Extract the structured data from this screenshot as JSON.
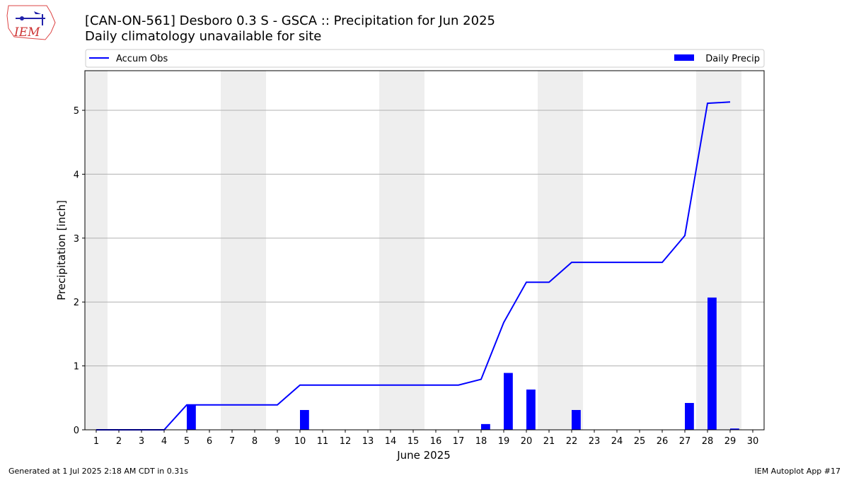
{
  "logo_text": "IEM",
  "footer_left": "Generated at 1 Jul 2025 2:18 AM CDT in 0.31s",
  "footer_right": "IEM Autoplot App #17",
  "chart_data": {
    "type": "bar_line",
    "title": "[CAN-ON-561] Desboro 0.3 S - GSCA :: Precipitation for Jun 2025",
    "subtitle": "Daily climatology unavailable for site",
    "x_label": "June 2025",
    "y_label": "Precipitation [inch]",
    "x": [
      1,
      2,
      3,
      4,
      5,
      6,
      7,
      8,
      9,
      10,
      11,
      12,
      13,
      14,
      15,
      16,
      17,
      18,
      19,
      20,
      21,
      22,
      23,
      24,
      25,
      26,
      27,
      28,
      29,
      30
    ],
    "xlim": [
      0.5,
      30.5
    ],
    "xticks": [
      1,
      2,
      3,
      4,
      5,
      6,
      7,
      8,
      9,
      10,
      11,
      12,
      13,
      14,
      15,
      16,
      17,
      18,
      19,
      20,
      21,
      22,
      23,
      24,
      25,
      26,
      27,
      28,
      29,
      30
    ],
    "ylim": [
      0,
      5.62
    ],
    "yticks": [
      0,
      1,
      2,
      3,
      4,
      5
    ],
    "grid": true,
    "shaded_x_ranges": [
      [
        0.5,
        1.5
      ],
      [
        6.5,
        8.5
      ],
      [
        13.5,
        15.5
      ],
      [
        20.5,
        22.5
      ],
      [
        27.5,
        29.5
      ]
    ],
    "shade_color": "#eeeeee",
    "series": [
      {
        "name": "Accum Obs",
        "kind": "line",
        "color": "#0000ff",
        "values": [
          0,
          0,
          0,
          0,
          0.39,
          0.39,
          0.39,
          0.39,
          0.39,
          0.7,
          0.7,
          0.7,
          0.7,
          0.7,
          0.7,
          0.7,
          0.7,
          0.79,
          1.68,
          2.31,
          2.31,
          2.62,
          2.62,
          2.62,
          2.62,
          2.62,
          3.04,
          5.11,
          5.13,
          null
        ]
      },
      {
        "name": "Daily Precip",
        "kind": "bar",
        "color": "#0000ff",
        "values": [
          0,
          0,
          0,
          0,
          0.39,
          0,
          0,
          0,
          0,
          0.31,
          0,
          0,
          0,
          0,
          0,
          0,
          0,
          0.09,
          0.89,
          0.63,
          0,
          0.31,
          0,
          0,
          0,
          0,
          0.42,
          2.07,
          0.02,
          null
        ]
      }
    ]
  }
}
